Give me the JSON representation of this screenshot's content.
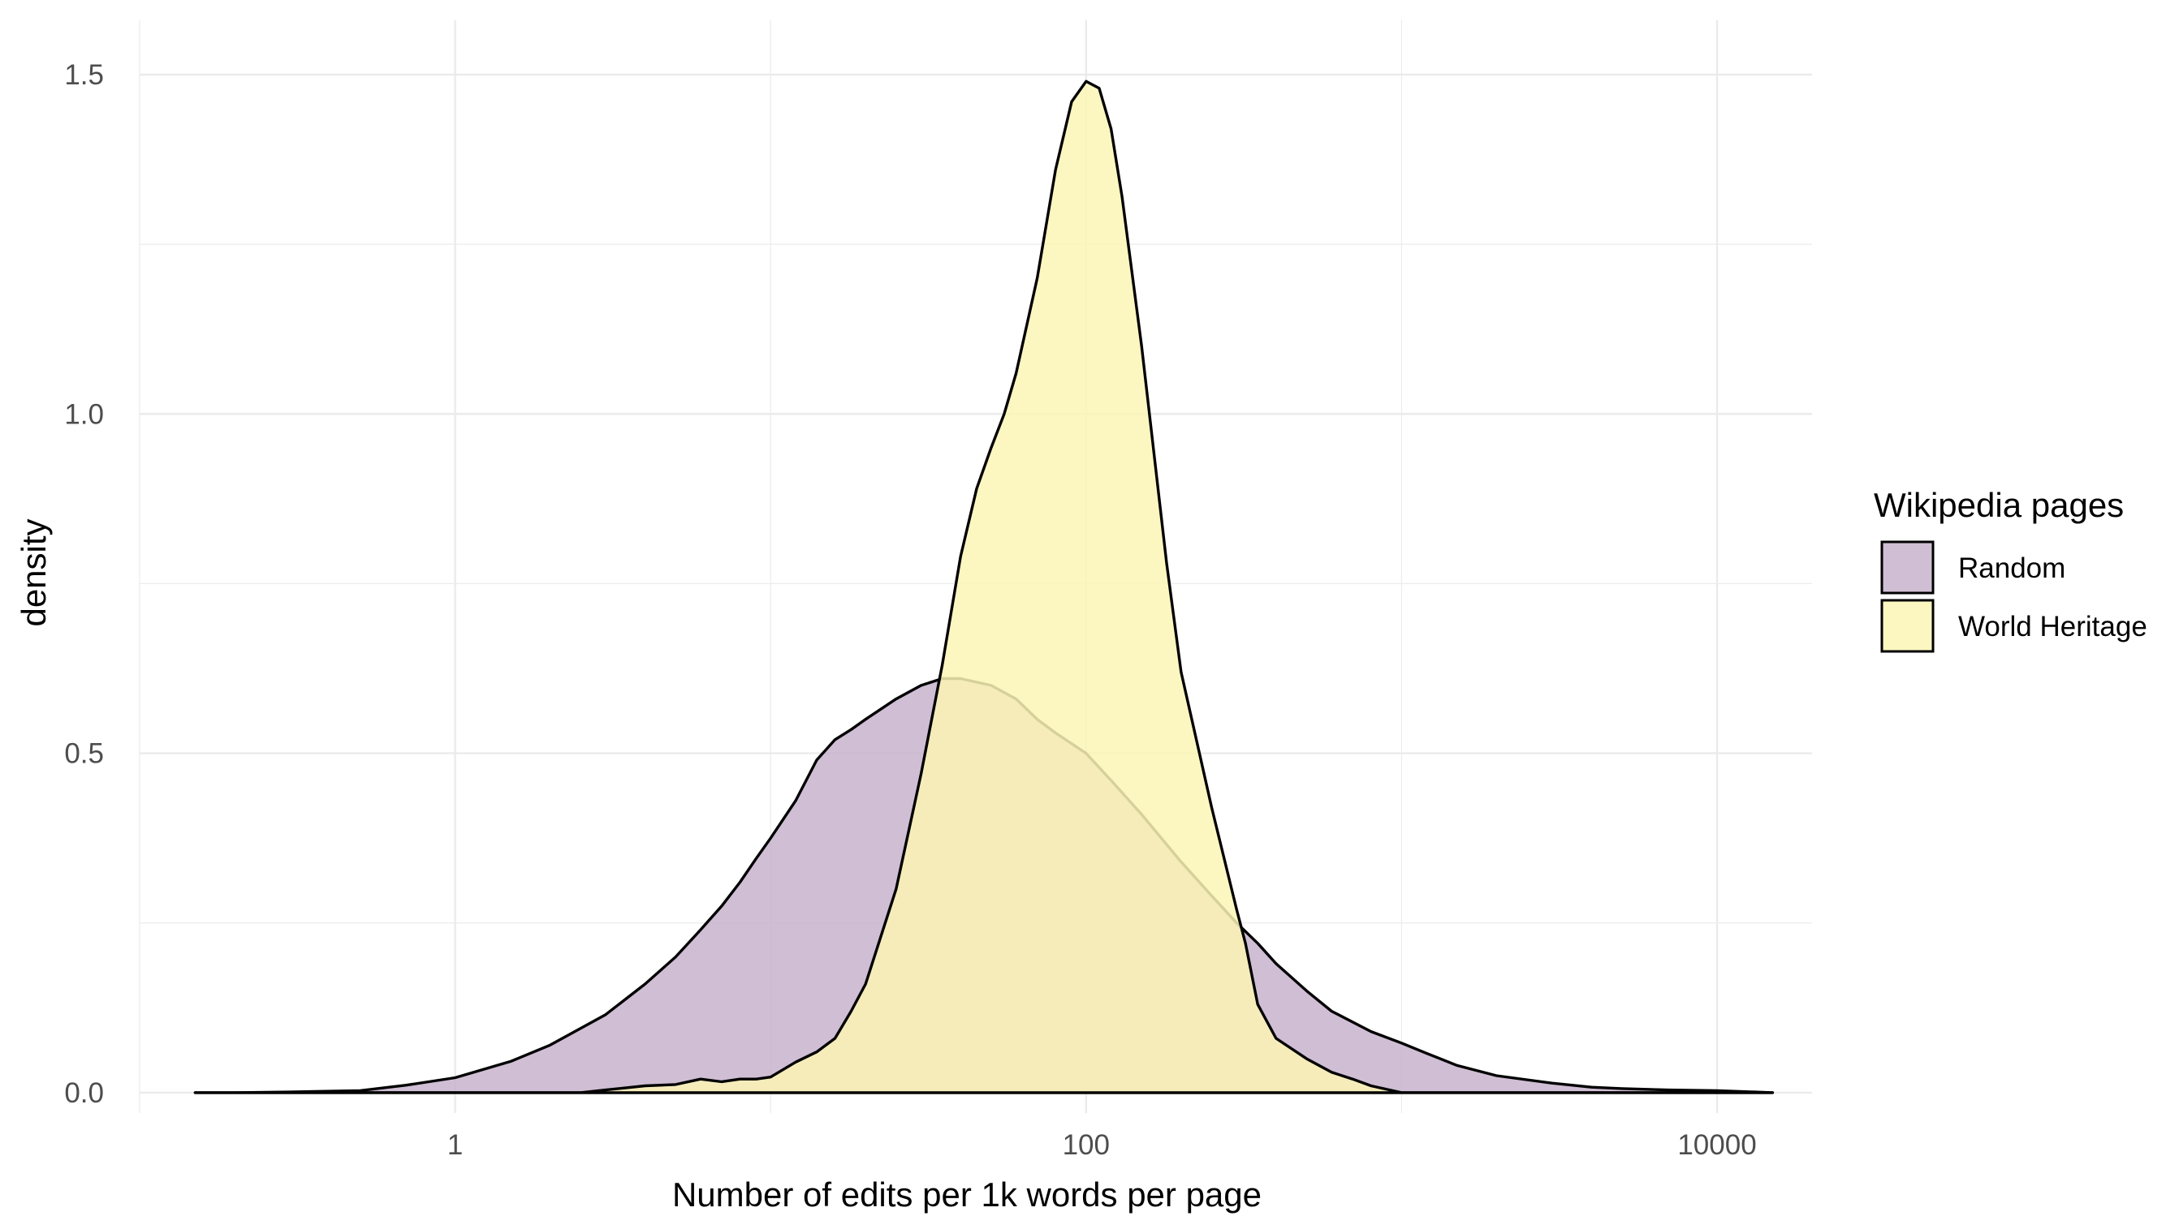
{
  "chart_data": {
    "type": "area",
    "title": "",
    "xlabel": "Number of edits per 1k words per page",
    "ylabel": "density",
    "x_scale": "log10",
    "xlim": [
      0.1,
      20000
    ],
    "ylim": [
      -0.03,
      1.58
    ],
    "x_ticks": [
      {
        "value": 1,
        "label": "1"
      },
      {
        "value": 100,
        "label": "100"
      },
      {
        "value": 10000,
        "label": "10000"
      }
    ],
    "x_minor_ticks": [
      0.1,
      10,
      1000
    ],
    "y_ticks": [
      {
        "value": 0.0,
        "label": "0.0"
      },
      {
        "value": 0.5,
        "label": "0.5"
      },
      {
        "value": 1.0,
        "label": "1.0"
      },
      {
        "value": 1.5,
        "label": "1.5"
      }
    ],
    "y_minor_ticks": [
      0.25,
      0.75,
      1.25
    ],
    "grid": true,
    "legend": {
      "title": "Wikipedia pages",
      "position": "right"
    },
    "series": [
      {
        "name": "Random",
        "color": "#c7b3cd",
        "x": [
          0.15,
          0.2,
          0.3,
          0.5,
          0.7,
          1.0,
          1.5,
          2.0,
          3.0,
          4.0,
          5.0,
          6.0,
          7.0,
          8.0,
          9.0,
          10.0,
          12.0,
          14.0,
          16.0,
          18.0,
          20.0,
          25.0,
          30.0,
          35.0,
          40.0,
          50.0,
          60.0,
          70.0,
          80.0,
          100.0,
          120.0,
          150.0,
          200.0,
          250.0,
          300.0,
          350.0,
          400.0,
          500.0,
          600.0,
          800.0,
          1000.0,
          1200.0,
          1500.0,
          2000.0,
          3000.0,
          4000.0,
          5000.0,
          7000.0,
          10000.0,
          15000.0
        ],
        "y": [
          0.0,
          0.0,
          0.001,
          0.003,
          0.011,
          0.022,
          0.046,
          0.07,
          0.115,
          0.16,
          0.2,
          0.24,
          0.275,
          0.31,
          0.345,
          0.375,
          0.43,
          0.49,
          0.52,
          0.535,
          0.55,
          0.58,
          0.6,
          0.61,
          0.61,
          0.6,
          0.58,
          0.55,
          0.53,
          0.5,
          0.46,
          0.41,
          0.34,
          0.29,
          0.25,
          0.22,
          0.19,
          0.15,
          0.12,
          0.09,
          0.073,
          0.058,
          0.04,
          0.025,
          0.014,
          0.008,
          0.006,
          0.004,
          0.003,
          0.0
        ]
      },
      {
        "name": "World Heritage",
        "color": "#fcf5b5",
        "x": [
          0.15,
          1.0,
          2.5,
          3.0,
          4.0,
          5.0,
          6.0,
          7.0,
          8.0,
          9.0,
          10.0,
          12.0,
          14.0,
          16.0,
          18.0,
          20.0,
          25.0,
          30.0,
          35.0,
          40.0,
          45.0,
          50.0,
          55.0,
          60.0,
          70.0,
          80.0,
          90.0,
          100.0,
          110.0,
          120.0,
          130.0,
          150.0,
          180.0,
          200.0,
          250.0,
          300.0,
          320.0,
          350.0,
          400.0,
          500.0,
          600.0,
          700.0,
          800.0,
          1000.0,
          15000.0
        ],
        "y": [
          0.0,
          0.0,
          0.0,
          0.004,
          0.01,
          0.012,
          0.02,
          0.016,
          0.02,
          0.02,
          0.023,
          0.045,
          0.06,
          0.08,
          0.12,
          0.16,
          0.3,
          0.47,
          0.63,
          0.79,
          0.89,
          0.95,
          1.0,
          1.06,
          1.2,
          1.36,
          1.46,
          1.49,
          1.48,
          1.42,
          1.32,
          1.1,
          0.78,
          0.62,
          0.42,
          0.27,
          0.22,
          0.13,
          0.08,
          0.05,
          0.03,
          0.02,
          0.01,
          0.0,
          0.0
        ]
      }
    ]
  }
}
